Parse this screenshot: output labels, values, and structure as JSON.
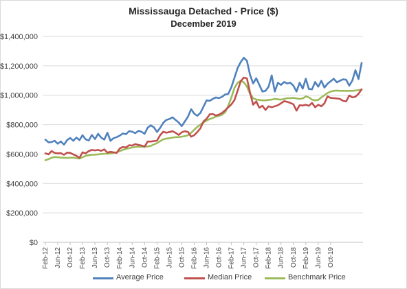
{
  "chart_data": {
    "type": "line",
    "title": "Mississauga Detached - Price ($)",
    "subtitle": "December 2019",
    "xlabel": "",
    "ylabel": "",
    "ylim": [
      0,
      1400000
    ],
    "yticks": [
      "$0",
      "$200,000",
      "$400,000",
      "$600,000",
      "$800,000",
      "$1,000,000",
      "$1,200,000",
      "$1,400,000"
    ],
    "xtick_labels": [
      "Feb-12",
      "Jun-12",
      "Oct-12",
      "Feb-13",
      "Jun-13",
      "Oct-13",
      "Feb-14",
      "Jun-14",
      "Oct-14",
      "Feb-15",
      "Jun-15",
      "Oct-15",
      "Feb-16",
      "Jun-16",
      "Oct-16",
      "Feb-17",
      "Jun-17",
      "Oct-17",
      "Feb-18",
      "Jun-18",
      "Oct-18",
      "Feb-19",
      "Jun-19",
      "Oct-19"
    ],
    "x_start": "Feb-12",
    "x_end": "Dec-19",
    "grid": "horizontal",
    "legend_position": "bottom",
    "series": [
      {
        "name": "Average Price",
        "color": "#4f81bd",
        "values": [
          698000,
          680000,
          682000,
          690000,
          670000,
          686000,
          664000,
          695000,
          710000,
          690000,
          712000,
          695000,
          728000,
          700000,
          692000,
          730000,
          702000,
          738000,
          712000,
          698000,
          745000,
          690000,
          708000,
          715000,
          725000,
          740000,
          735000,
          756000,
          752000,
          742000,
          758000,
          752000,
          738000,
          780000,
          795000,
          782000,
          750000,
          778000,
          812000,
          832000,
          838000,
          850000,
          832000,
          815000,
          790000,
          822000,
          855000,
          905000,
          875000,
          860000,
          880000,
          922000,
          965000,
          962000,
          975000,
          985000,
          980000,
          990000,
          1005000,
          1010000,
          1055000,
          1120000,
          1185000,
          1225000,
          1255000,
          1235000,
          1140000,
          1080000,
          1115000,
          1070000,
          1025000,
          1030000,
          1058000,
          1135000,
          1025000,
          1085000,
          1070000,
          1090000,
          1080000,
          1085000,
          1065000,
          1025000,
          1085000,
          1045000,
          1112000,
          1042000,
          1040000,
          1090000,
          1058000,
          1098000,
          1052000,
          1078000,
          1095000,
          1112000,
          1088000,
          1098000,
          1108000,
          1105000,
          1065000,
          1100000,
          1170000,
          1110000,
          1220000
        ]
      },
      {
        "name": "Median Price",
        "color": "#c0504d",
        "values": [
          605000,
          598000,
          620000,
          608000,
          605000,
          606000,
          595000,
          610000,
          608000,
          598000,
          588000,
          575000,
          612000,
          605000,
          620000,
          628000,
          625000,
          628000,
          622000,
          632000,
          610000,
          615000,
          612000,
          608000,
          638000,
          648000,
          645000,
          660000,
          658000,
          668000,
          662000,
          658000,
          650000,
          685000,
          685000,
          688000,
          692000,
          728000,
          752000,
          745000,
          750000,
          755000,
          745000,
          730000,
          748000,
          755000,
          750000,
          718000,
          728000,
          750000,
          775000,
          822000,
          840000,
          870000,
          872000,
          862000,
          868000,
          880000,
          898000,
          918000,
          938000,
          968000,
          1030000,
          1095000,
          1120000,
          1115000,
          1020000,
          935000,
          958000,
          915000,
          928000,
          900000,
          925000,
          918000,
          925000,
          932000,
          945000,
          960000,
          955000,
          948000,
          938000,
          895000,
          932000,
          930000,
          935000,
          928000,
          948000,
          918000,
          935000,
          925000,
          945000,
          992000,
          982000,
          980000,
          978000,
          975000,
          962000,
          958000,
          998000,
          985000,
          990000,
          1010000,
          1040000
        ]
      },
      {
        "name": "Benchmark Price",
        "color": "#9bbb59",
        "values": [
          558000,
          565000,
          575000,
          580000,
          578000,
          576000,
          575000,
          574000,
          575000,
          576000,
          572000,
          570000,
          578000,
          588000,
          592000,
          595000,
          596000,
          598000,
          600000,
          602000,
          602000,
          604000,
          608000,
          612000,
          620000,
          628000,
          635000,
          640000,
          645000,
          648000,
          650000,
          650000,
          650000,
          652000,
          655000,
          665000,
          675000,
          688000,
          700000,
          705000,
          708000,
          712000,
          715000,
          715000,
          718000,
          722000,
          728000,
          745000,
          765000,
          785000,
          800000,
          815000,
          828000,
          838000,
          845000,
          855000,
          860000,
          868000,
          885000,
          930000,
          985000,
          1050000,
          1085000,
          1098000,
          1088000,
          1060000,
          1010000,
          980000,
          970000,
          968000,
          965000,
          965000,
          968000,
          970000,
          975000,
          972000,
          970000,
          975000,
          980000,
          980000,
          982000,
          978000,
          975000,
          978000,
          992000,
          985000,
          970000,
          965000,
          968000,
          985000,
          1000000,
          1015000,
          1025000,
          1030000,
          1032000,
          1030000,
          1030000,
          1030000,
          1030000,
          1030000,
          1032000,
          1035000,
          1038000
        ]
      }
    ]
  }
}
